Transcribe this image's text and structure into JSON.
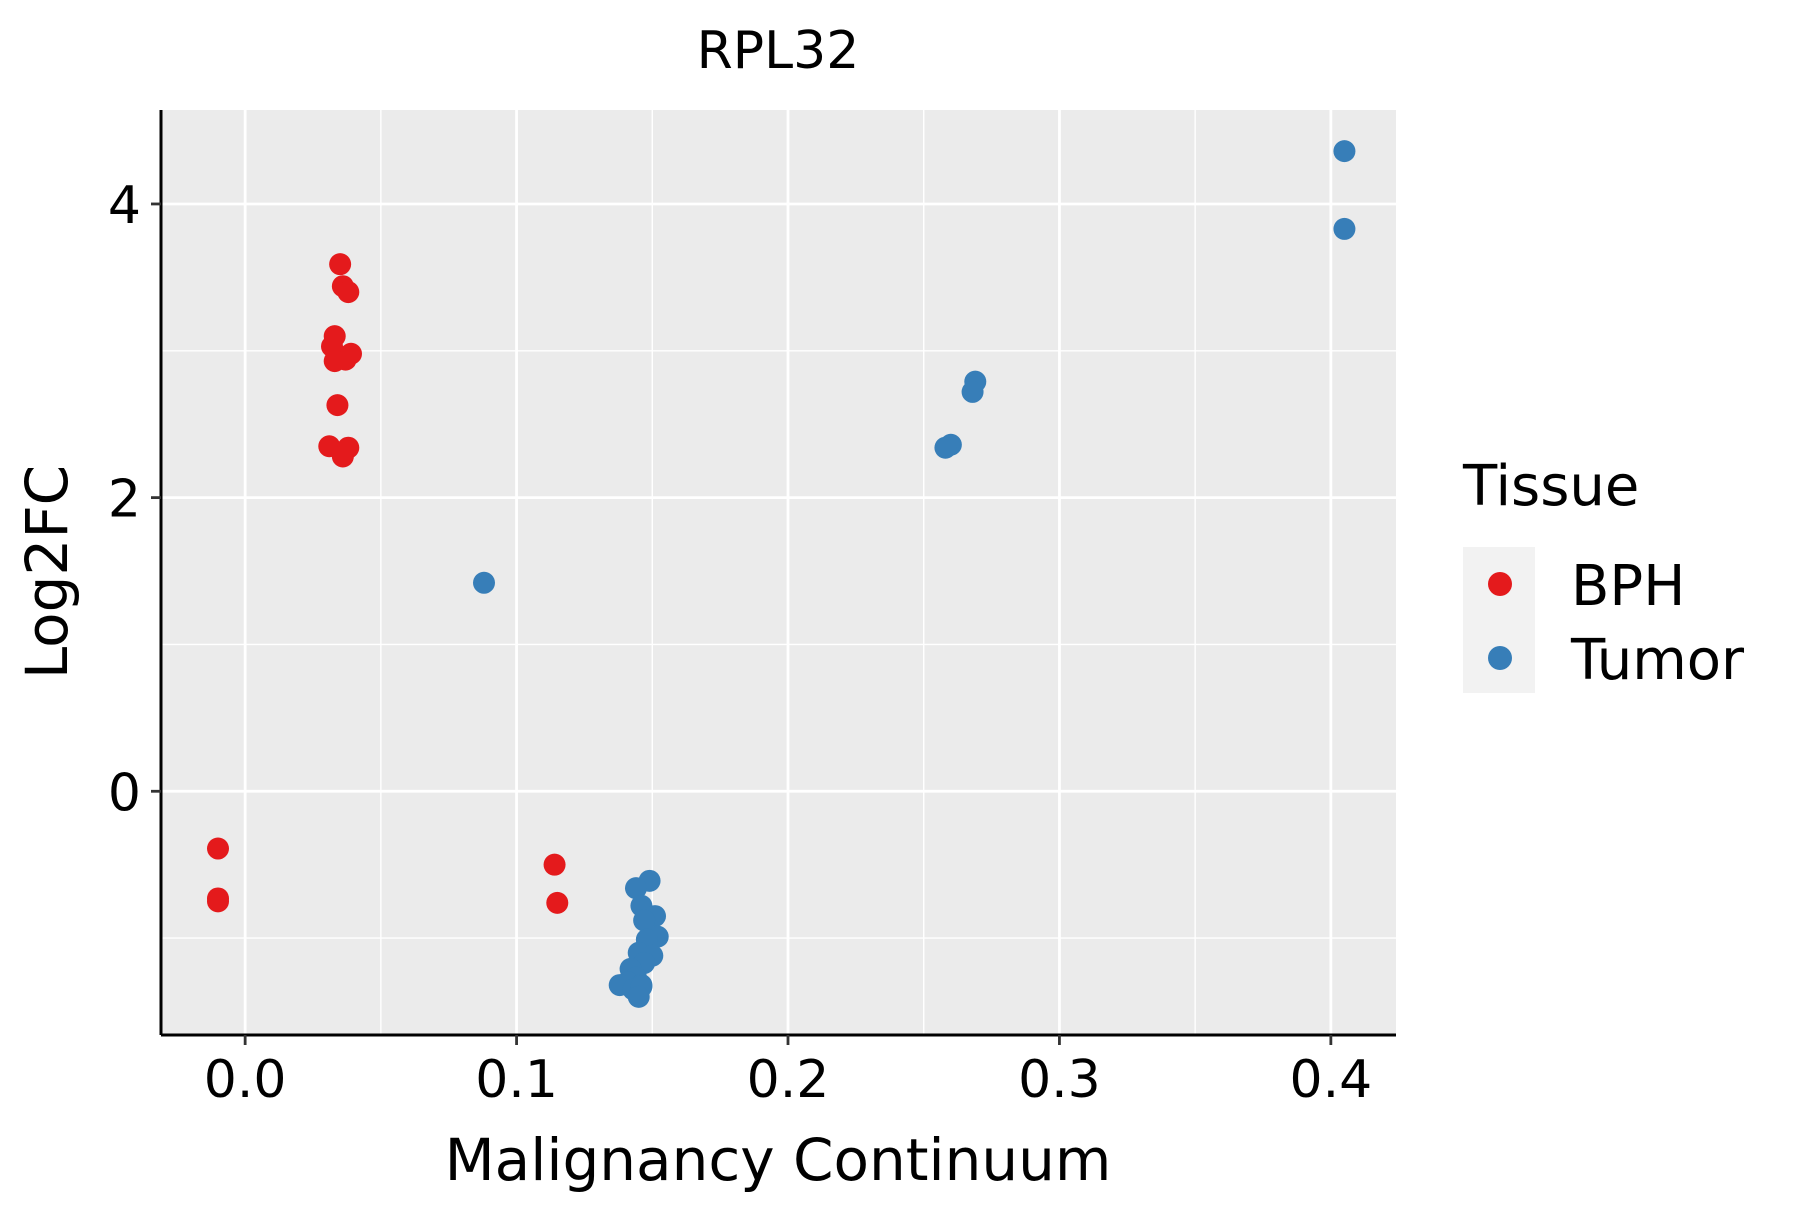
{
  "chart_data": {
    "type": "scatter",
    "title": "RPL32",
    "xlabel": "Malignancy Continuum",
    "ylabel": "Log2FC",
    "xlim": [
      -0.031,
      0.424
    ],
    "ylim": [
      -1.66,
      4.64
    ],
    "x_ticks": [
      0.0,
      0.1,
      0.2,
      0.3,
      0.4
    ],
    "x_tick_labels": [
      "0.0",
      "0.1",
      "0.2",
      "0.3",
      "0.4"
    ],
    "y_ticks": [
      0,
      2,
      4
    ],
    "y_tick_labels": [
      "0",
      "2",
      "4"
    ],
    "x_minor_ticks": [
      0.05,
      0.15,
      0.25,
      0.35
    ],
    "y_minor_ticks": [
      -1,
      1,
      3
    ],
    "grid": true,
    "legend": {
      "title": "Tissue",
      "position": "right",
      "entries": [
        "BPH",
        "Tumor"
      ]
    },
    "series": [
      {
        "name": "BPH",
        "color": "#e41a1c",
        "points": [
          {
            "x": 0.035,
            "y": 3.59
          },
          {
            "x": 0.036,
            "y": 3.44
          },
          {
            "x": 0.038,
            "y": 3.4
          },
          {
            "x": 0.033,
            "y": 3.1
          },
          {
            "x": 0.032,
            "y": 3.03
          },
          {
            "x": 0.039,
            "y": 2.98
          },
          {
            "x": 0.037,
            "y": 2.94
          },
          {
            "x": 0.033,
            "y": 2.93
          },
          {
            "x": 0.034,
            "y": 2.63
          },
          {
            "x": 0.031,
            "y": 2.35
          },
          {
            "x": 0.038,
            "y": 2.34
          },
          {
            "x": 0.036,
            "y": 2.28
          },
          {
            "x": -0.01,
            "y": -0.39
          },
          {
            "x": -0.01,
            "y": -0.73
          },
          {
            "x": -0.01,
            "y": -0.75
          },
          {
            "x": 0.114,
            "y": -0.5
          },
          {
            "x": 0.115,
            "y": -0.76
          }
        ]
      },
      {
        "name": "Tumor",
        "color": "#377eb8",
        "points": [
          {
            "x": 0.405,
            "y": 4.36
          },
          {
            "x": 0.405,
            "y": 3.83
          },
          {
            "x": 0.269,
            "y": 2.79
          },
          {
            "x": 0.268,
            "y": 2.72
          },
          {
            "x": 0.26,
            "y": 2.36
          },
          {
            "x": 0.258,
            "y": 2.34
          },
          {
            "x": 0.088,
            "y": 1.42
          },
          {
            "x": 0.149,
            "y": -0.61
          },
          {
            "x": 0.144,
            "y": -0.66
          },
          {
            "x": 0.146,
            "y": -0.78
          },
          {
            "x": 0.151,
            "y": -0.85
          },
          {
            "x": 0.147,
            "y": -0.88
          },
          {
            "x": 0.152,
            "y": -0.99
          },
          {
            "x": 0.148,
            "y": -1.01
          },
          {
            "x": 0.145,
            "y": -1.1
          },
          {
            "x": 0.15,
            "y": -1.12
          },
          {
            "x": 0.147,
            "y": -1.17
          },
          {
            "x": 0.142,
            "y": -1.21
          },
          {
            "x": 0.144,
            "y": -1.27
          },
          {
            "x": 0.141,
            "y": -1.3
          },
          {
            "x": 0.146,
            "y": -1.32
          },
          {
            "x": 0.138,
            "y": -1.32
          },
          {
            "x": 0.143,
            "y": -1.35
          },
          {
            "x": 0.146,
            "y": -1.33
          },
          {
            "x": 0.145,
            "y": -1.4
          }
        ]
      }
    ]
  }
}
